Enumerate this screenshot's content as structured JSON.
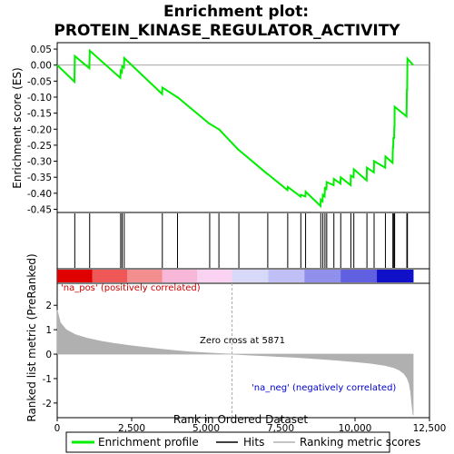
{
  "chart_data": {
    "type": "line",
    "title_line1": "Enrichment plot:",
    "title_line2": "PROTEIN_KINASE_REGULATOR_ACTIVITY",
    "xlabel": "Rank in Ordered Dataset",
    "ylabel_top": "Enrichment score (ES)",
    "ylabel_bottom": "Ranked list metric (PreRanked)",
    "xlim": [
      0,
      12500
    ],
    "es_ylim": [
      -0.46,
      0.07
    ],
    "metric_ylim": [
      -2.6,
      2.9
    ],
    "x_ticks": [
      0,
      2500,
      5000,
      7500,
      10000,
      12500
    ],
    "x_tick_labels": [
      "0",
      "2,500",
      "5,000",
      "7,500",
      "10,000",
      "12,500"
    ],
    "es_ticks": [
      0.05,
      0.0,
      -0.05,
      -0.1,
      -0.15,
      -0.2,
      -0.25,
      -0.3,
      -0.35,
      -0.4,
      -0.45
    ],
    "es_tick_labels": [
      "0.05",
      "0.00",
      "-0.05",
      "-0.10",
      "-0.15",
      "-0.20",
      "-0.25",
      "-0.30",
      "-0.35",
      "-0.40",
      "-0.45"
    ],
    "metric_ticks": [
      2,
      1,
      0,
      -1,
      -2
    ],
    "metric_tick_labels": [
      "2",
      "1",
      "0",
      "-1",
      "-2"
    ],
    "hits": [
      590,
      1090,
      2130,
      2180,
      2250,
      3530,
      4040,
      5120,
      5430,
      6100,
      7070,
      7740,
      8180,
      8340,
      8850,
      8920,
      8990,
      9050,
      9290,
      9520,
      9860,
      9960,
      10400,
      10640,
      11020,
      11270,
      11290,
      11320,
      11330,
      11740,
      11760
    ],
    "es_profile": {
      "x": [
        0,
        580,
        590,
        1080,
        1090,
        2120,
        2130,
        2170,
        2180,
        2240,
        2250,
        3520,
        3530,
        4030,
        4040,
        5110,
        5120,
        5420,
        5430,
        6090,
        6100,
        7060,
        7070,
        7730,
        7740,
        8170,
        8180,
        8330,
        8340,
        8840,
        8850,
        8910,
        8920,
        8980,
        8990,
        9040,
        9050,
        9280,
        9290,
        9510,
        9520,
        9850,
        9860,
        9950,
        9960,
        10390,
        10400,
        10630,
        10640,
        11010,
        11020,
        11260,
        11270,
        11280,
        11290,
        11310,
        11320,
        11325,
        11330,
        11730,
        11740,
        11750,
        11760,
        11950
      ],
      "y": [
        0.0,
        -0.052,
        0.028,
        -0.01,
        0.045,
        -0.04,
        -0.018,
        -0.022,
        -0.004,
        -0.008,
        0.022,
        -0.09,
        -0.07,
        -0.1,
        -0.1,
        -0.183,
        -0.183,
        -0.2,
        -0.2,
        -0.265,
        -0.265,
        -0.34,
        -0.34,
        -0.39,
        -0.38,
        -0.41,
        -0.405,
        -0.41,
        -0.395,
        -0.44,
        -0.42,
        -0.425,
        -0.405,
        -0.41,
        -0.38,
        -0.39,
        -0.365,
        -0.375,
        -0.355,
        -0.37,
        -0.35,
        -0.375,
        -0.345,
        -0.35,
        -0.325,
        -0.36,
        -0.32,
        -0.335,
        -0.3,
        -0.32,
        -0.285,
        -0.305,
        -0.255,
        -0.26,
        -0.225,
        -0.23,
        -0.19,
        -0.195,
        -0.13,
        -0.16,
        -0.075,
        -0.08,
        0.02,
        0.0
      ]
    },
    "metric_profile": {
      "x": [
        0,
        100,
        300,
        600,
        1000,
        1500,
        2000,
        2500,
        3000,
        3500,
        4000,
        4500,
        5000,
        5500,
        5871,
        6500,
        7000,
        7500,
        8000,
        8500,
        9000,
        9500,
        10000,
        10500,
        11000,
        11300,
        11500,
        11650,
        11750,
        11820,
        11870,
        11900,
        11950
      ],
      "y": [
        1.8,
        1.3,
        1.0,
        0.8,
        0.65,
        0.52,
        0.42,
        0.34,
        0.27,
        0.2,
        0.14,
        0.09,
        0.05,
        0.02,
        0.0,
        -0.04,
        -0.07,
        -0.1,
        -0.13,
        -0.17,
        -0.21,
        -0.26,
        -0.31,
        -0.37,
        -0.46,
        -0.55,
        -0.66,
        -0.8,
        -0.98,
        -1.2,
        -1.55,
        -1.95,
        -2.5
      ]
    },
    "zero_cross_rank": 5871,
    "zero_cross_label": "Zero cross at 5871",
    "pos_label": "'na_pos' (positively correlated)",
    "neg_label": "'na_neg' (negatively correlated)",
    "legend": [
      "Enrichment profile",
      "Hits",
      "Ranking metric scores"
    ],
    "colors": {
      "es_line": "#00ee00",
      "hit": "#000000",
      "metric_fill": "#b0b0b0",
      "pos_text": "#cc0000",
      "neg_text": "#0000cc",
      "zero_line": "#aaaaaa",
      "heat_pos": [
        "#e00000",
        "#f05858",
        "#f38e8e",
        "#f8b6d8",
        "#fad2f2"
      ],
      "heat_neg": [
        "#d8d8f8",
        "#c0c0f6",
        "#9090ec",
        "#6060e0",
        "#1010c8"
      ]
    }
  }
}
